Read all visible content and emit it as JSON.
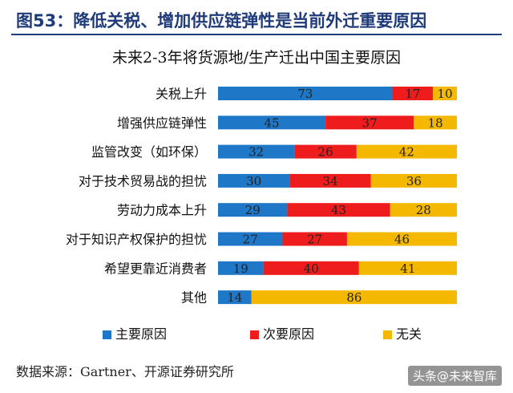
{
  "header": {
    "title": "图53：降低关税、增加供应链弹性是当前外迁重要原因"
  },
  "footer": {
    "source": "数据来源：Gartner、开源证券研究所"
  },
  "watermark": {
    "text": "头条@未来智库"
  },
  "chart_data": {
    "type": "bar",
    "orientation": "horizontal",
    "stacked": true,
    "title": "未来2-3年将货源地/生产迁出中国主要原因",
    "categories": [
      "关税上升",
      "增强供应链弹性",
      "监管改变（如环保）",
      "对于技术贸易战的担忧",
      "劳动力成本上升",
      "对于知识产权保护的担忧",
      "希望更靠近消费者",
      "其他"
    ],
    "series": [
      {
        "name": "主要原因",
        "color": "#1f77c8",
        "values": [
          73,
          45,
          32,
          30,
          29,
          27,
          19,
          14
        ]
      },
      {
        "name": "次要原因",
        "color": "#ee1c1c",
        "values": [
          17,
          37,
          26,
          34,
          43,
          27,
          40,
          0
        ]
      },
      {
        "name": "无关",
        "color": "#f5b800",
        "values": [
          10,
          18,
          42,
          36,
          28,
          46,
          41,
          86
        ]
      }
    ],
    "xlim": [
      0,
      100
    ],
    "grid": false,
    "legend_position": "bottom"
  }
}
